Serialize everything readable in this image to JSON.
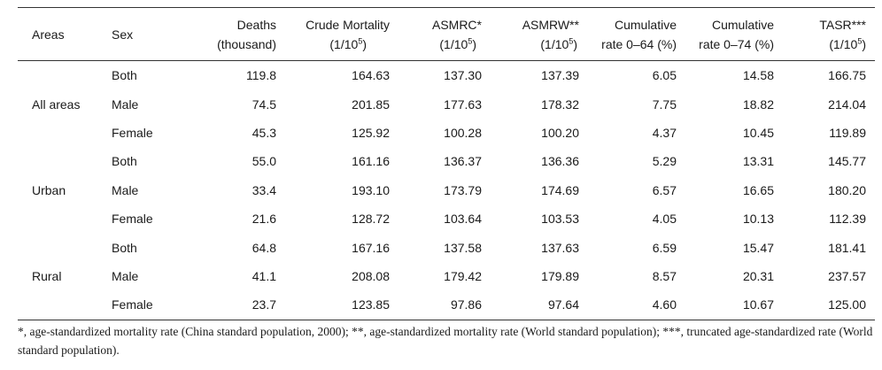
{
  "header": {
    "areas": "Areas",
    "sex": "Sex",
    "deaths": [
      "Deaths",
      "(thousand)"
    ],
    "crude": [
      "Crude Mortality",
      "(1/10",
      "5",
      ")"
    ],
    "asmrc": [
      "ASMRC*",
      "(1/10",
      "5",
      ")"
    ],
    "asmrw": [
      "ASMRW**",
      "(1/10",
      "5",
      ")"
    ],
    "cum64": [
      "Cumulative",
      "rate 0–64 (%)"
    ],
    "cum74": [
      "Cumulative",
      "rate 0–74 (%)"
    ],
    "tasr": [
      "TASR***",
      "(1/10",
      "5",
      ")"
    ]
  },
  "rows": [
    {
      "area": "",
      "sex": "Both",
      "deaths": "119.8",
      "crude": "164.63",
      "asmrc": "137.30",
      "asmrw": "137.39",
      "cum64": "6.05",
      "cum74": "14.58",
      "tasr": "166.75"
    },
    {
      "area": "All areas",
      "sex": "Male",
      "deaths": "74.5",
      "crude": "201.85",
      "asmrc": "177.63",
      "asmrw": "178.32",
      "cum64": "7.75",
      "cum74": "18.82",
      "tasr": "214.04"
    },
    {
      "area": "",
      "sex": "Female",
      "deaths": "45.3",
      "crude": "125.92",
      "asmrc": "100.28",
      "asmrw": "100.20",
      "cum64": "4.37",
      "cum74": "10.45",
      "tasr": "119.89"
    },
    {
      "area": "",
      "sex": "Both",
      "deaths": "55.0",
      "crude": "161.16",
      "asmrc": "136.37",
      "asmrw": "136.36",
      "cum64": "5.29",
      "cum74": "13.31",
      "tasr": "145.77"
    },
    {
      "area": "Urban",
      "sex": "Male",
      "deaths": "33.4",
      "crude": "193.10",
      "asmrc": "173.79",
      "asmrw": "174.69",
      "cum64": "6.57",
      "cum74": "16.65",
      "tasr": "180.20"
    },
    {
      "area": "",
      "sex": "Female",
      "deaths": "21.6",
      "crude": "128.72",
      "asmrc": "103.64",
      "asmrw": "103.53",
      "cum64": "4.05",
      "cum74": "10.13",
      "tasr": "112.39"
    },
    {
      "area": "",
      "sex": "Both",
      "deaths": "64.8",
      "crude": "167.16",
      "asmrc": "137.58",
      "asmrw": "137.63",
      "cum64": "6.59",
      "cum74": "15.47",
      "tasr": "181.41"
    },
    {
      "area": "Rural",
      "sex": "Male",
      "deaths": "41.1",
      "crude": "208.08",
      "asmrc": "179.42",
      "asmrw": "179.89",
      "cum64": "8.57",
      "cum74": "20.31",
      "tasr": "237.57"
    },
    {
      "area": "",
      "sex": "Female",
      "deaths": "23.7",
      "crude": "123.85",
      "asmrc": "97.86",
      "asmrw": "97.64",
      "cum64": "4.60",
      "cum74": "10.67",
      "tasr": "125.00"
    }
  ],
  "footnote": "*, age-standardized mortality rate (China standard population, 2000); **, age-standardized mortality rate (World standard population); ***, truncated age-standardized rate (World standard population)."
}
